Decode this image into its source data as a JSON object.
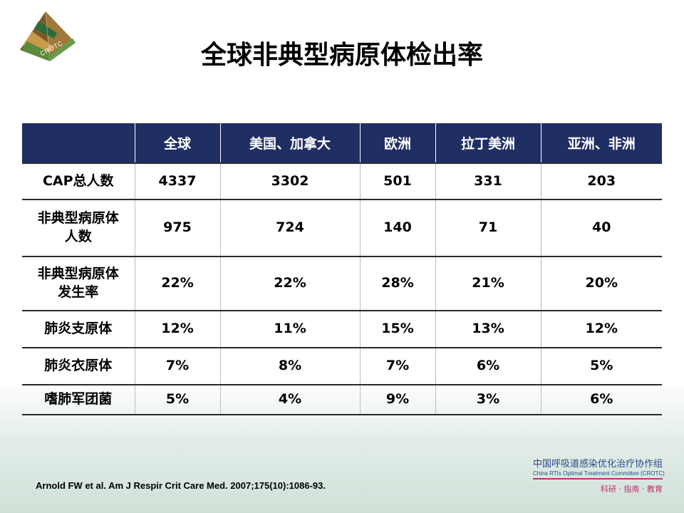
{
  "logo": {
    "text": "CROTC"
  },
  "title": "全球非典型病原体检出率",
  "table": {
    "headers": [
      "",
      "全球",
      "美国、加拿大",
      "欧洲",
      "拉丁美洲",
      "亚洲、非洲"
    ],
    "rows": [
      {
        "label": "CAP总人数",
        "values": [
          "4337",
          "3302",
          "501",
          "331",
          "203"
        ]
      },
      {
        "label": "非典型病原体\n人数",
        "values": [
          "975",
          "724",
          "140",
          "71",
          "40"
        ]
      },
      {
        "label": "非典型病原体\n发生率",
        "values": [
          "22%",
          "22%",
          "28%",
          "21%",
          "20%"
        ]
      },
      {
        "label": "肺炎支原体",
        "values": [
          "12%",
          "11%",
          "15%",
          "13%",
          "12%"
        ]
      },
      {
        "label": "肺炎衣原体",
        "values": [
          "7%",
          "8%",
          "7%",
          "6%",
          "5%"
        ]
      },
      {
        "label": "嗜肺军团菌",
        "values": [
          "5%",
          "4%",
          "9%",
          "3%",
          "6%"
        ]
      }
    ]
  },
  "citation": "Arnold FW  et al. Am J Respir Crit Care Med. 2007;175(10):1086-93.",
  "org": {
    "name_cn": "中国呼吸道感染优化治疗协作组",
    "name_en": "China RTIs Optimal Treatment Committee (CROTC)",
    "motto": "科研 · 指南 · 教育"
  }
}
